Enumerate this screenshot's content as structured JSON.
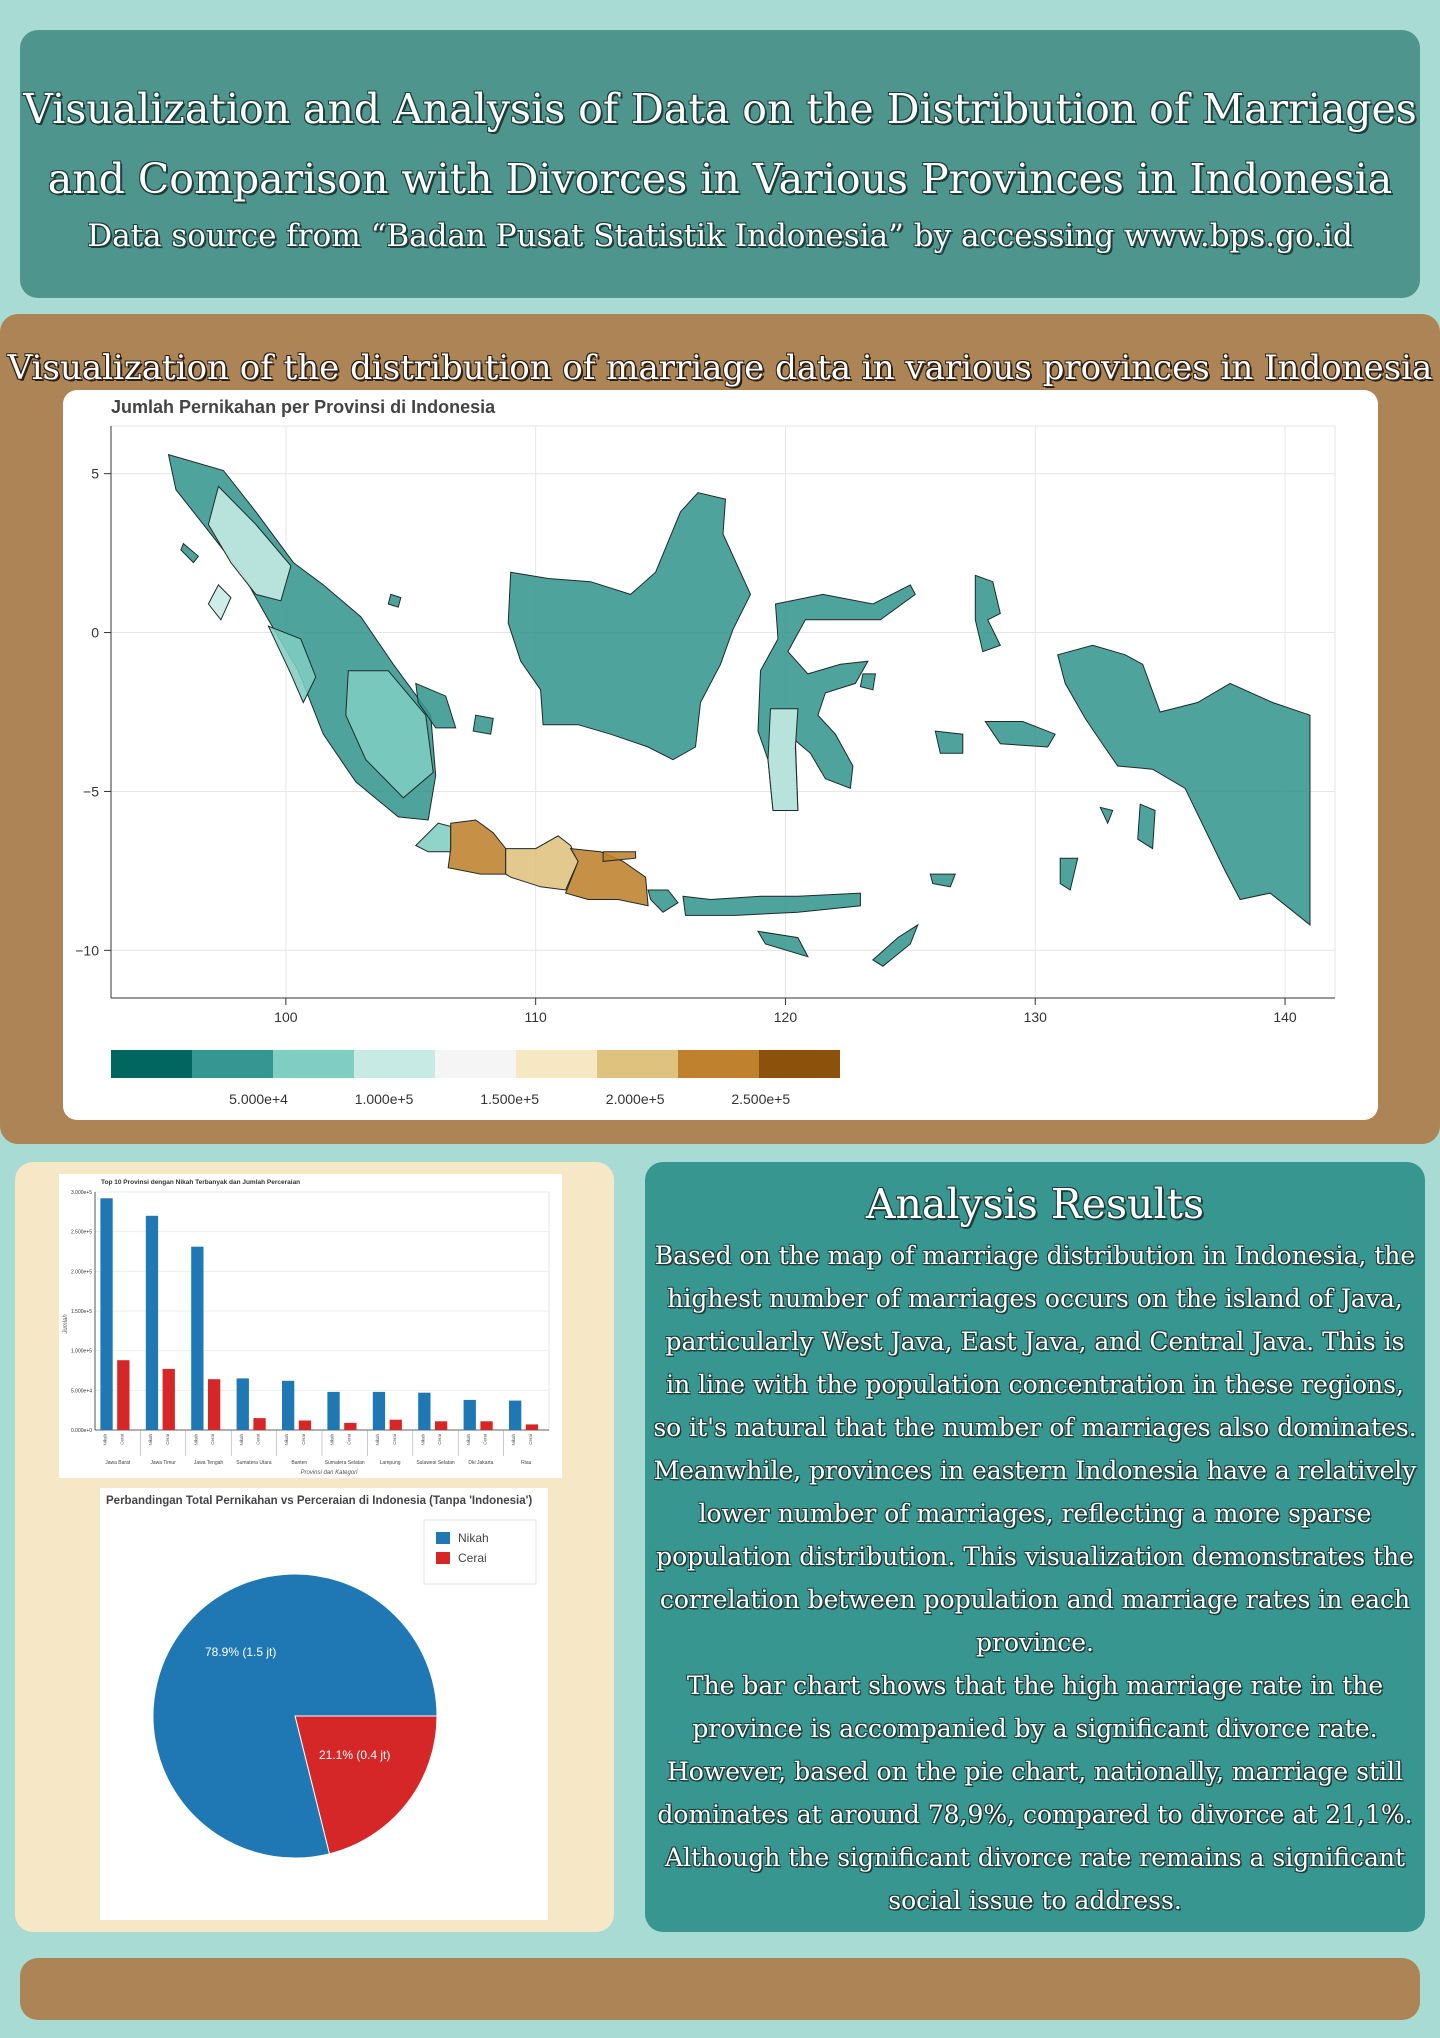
{
  "header": {
    "title_line1": "Visualization and Analysis of Data on the Distribution of Marriages",
    "title_line2": "and Comparison with Divorces in Various Provinces in Indonesia",
    "subtitle": "Data source from “Badan Pusat Statistik Indonesia” by accessing www.bps.go.id"
  },
  "map_section": {
    "title": "Visualization of the distribution of marriage data in various provinces in Indonesia"
  },
  "analysis": {
    "title": "Analysis Results",
    "paragraph1": "Based on the map of marriage distribution in Indonesia, the highest number of marriages occurs on the island of Java, particularly West Java, East Java, and Central Java. This is in line with the population concentration in these regions, so it's natural that the number of marriages also dominates. Meanwhile, provinces in eastern Indonesia have a relatively lower number of marriages, reflecting a more sparse population distribution. This visualization demonstrates the correlation between population and marriage rates in each province.",
    "paragraph2": "The bar chart shows that the high marriage rate in the province is accompanied by a significant divorce rate. However, based on the pie chart, nationally, marriage still dominates at around 78,9%, compared to divorce at 21,1%. Although the significant divorce rate remains a significant social issue to address."
  },
  "colors": {
    "header_bg": "#4d958d",
    "accent_brown": "#ad8455",
    "panel_teal": "#379790",
    "nikah_blue": "#1f77b4",
    "cerai_red": "#d62728"
  },
  "chart_data": [
    {
      "type": "map",
      "title": "Jumlah Pernikahan per Provinsi di Indonesia",
      "x_ticks": [
        100,
        110,
        120,
        130,
        140
      ],
      "y_ticks": [
        5,
        0,
        -5,
        -10
      ],
      "x_range": [
        93,
        142
      ],
      "y_range": [
        -11.5,
        6.5
      ],
      "colorbar": {
        "ticks": [
          "5.000e+4",
          "1.000e+5",
          "1.500e+5",
          "2.000e+5",
          "2.500e+5"
        ],
        "colors": [
          "#01665e",
          "#35978f",
          "#80cdc1",
          "#c7eae5",
          "#f5f5f5",
          "#f6e8c3",
          "#dfc27d",
          "#bf812d",
          "#8c510a"
        ]
      },
      "regions": [
        {
          "name": "Jawa Barat",
          "value": 290000
        },
        {
          "name": "Jawa Tengah",
          "value": 230000
        },
        {
          "name": "Jawa Timur",
          "value": 270000
        }
      ]
    },
    {
      "type": "bar",
      "title": "Top 10 Provinsi dengan Nikah Terbanyak dan Jumlah Perceraian",
      "xlabel": "Provinsi dan Kategori",
      "ylabel": "Jumlah",
      "ylim": [
        0,
        300000
      ],
      "y_ticks": [
        "0.000e+0",
        "5.000e+4",
        "1.000e+5",
        "1.500e+5",
        "2.000e+5",
        "2.500e+5",
        "3.000e+5"
      ],
      "categories": [
        "Jawa Barat",
        "Jawa Timur",
        "Jawa Tengah",
        "Sumatera Utara",
        "Banten",
        "Sumatera Selatan",
        "Lampung",
        "Sulawesi Selatan",
        "Dki Jakarta",
        "Riau"
      ],
      "sub_labels": [
        "Nikah",
        "Cerai"
      ],
      "series": [
        {
          "name": "Nikah",
          "values": [
            292000,
            270000,
            231000,
            65000,
            62000,
            48000,
            48000,
            47000,
            38000,
            37000
          ]
        },
        {
          "name": "Cerai",
          "values": [
            88000,
            77000,
            64000,
            15000,
            12000,
            9000,
            13000,
            11000,
            11000,
            7000
          ]
        }
      ]
    },
    {
      "type": "pie",
      "title": "Perbandingan Total Pernikahan vs Perceraian di Indonesia (Tanpa 'Indonesia')",
      "slices": [
        {
          "name": "Nikah",
          "percent": 78.9,
          "label": "78.9% (1.5 jt)"
        },
        {
          "name": "Cerai",
          "percent": 21.1,
          "label": "21.1% (0.4 jt)"
        }
      ],
      "legend_position": "top-right"
    }
  ]
}
